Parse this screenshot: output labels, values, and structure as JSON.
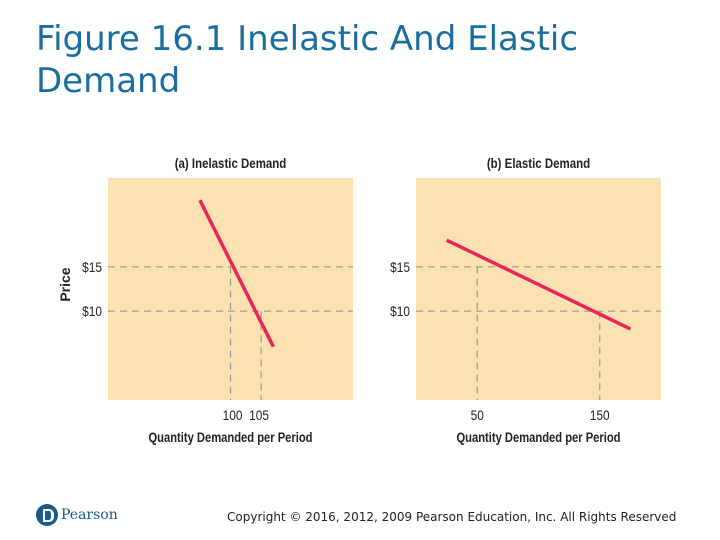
{
  "slide": {
    "title": "Figure 16.1 Inelastic And Elastic Demand",
    "logo_text": "Pearson",
    "copyright": "Copyright © 2016, 2012, 2009 Pearson Education, Inc. All Rights Reserved"
  },
  "colors": {
    "title": "#1a6e9f",
    "plot_background": "#fbe2b0",
    "demand_line": "#e8265a",
    "guide_line": "#999999"
  },
  "chart_data": [
    {
      "type": "line",
      "title": "(a) Inelastic Demand",
      "xlabel": "Quantity Demanded per Period",
      "ylabel": "Price",
      "grid": false,
      "x_ticks": [
        "100",
        "105"
      ],
      "y_ticks": [
        "$10",
        "$15"
      ],
      "xlim": [
        80,
        120
      ],
      "ylim": [
        0,
        25
      ],
      "series": [
        {
          "x": [
            95,
            107
          ],
          "y": [
            22.5,
            6
          ]
        }
      ],
      "guides": [
        {
          "x": 100,
          "y": 15
        },
        {
          "x": 105,
          "y": 10
        }
      ]
    },
    {
      "type": "line",
      "title": "(b) Elastic Demand",
      "xlabel": "Quantity Demanded per Period",
      "ylabel": "",
      "grid": false,
      "x_ticks": [
        "50",
        "150"
      ],
      "y_ticks": [
        "$10",
        "$15"
      ],
      "xlim": [
        0,
        200
      ],
      "ylim": [
        0,
        25
      ],
      "series": [
        {
          "x": [
            25,
            175
          ],
          "y": [
            18,
            8
          ]
        }
      ],
      "guides": [
        {
          "x": 50,
          "y": 15
        },
        {
          "x": 150,
          "y": 10
        }
      ]
    }
  ]
}
